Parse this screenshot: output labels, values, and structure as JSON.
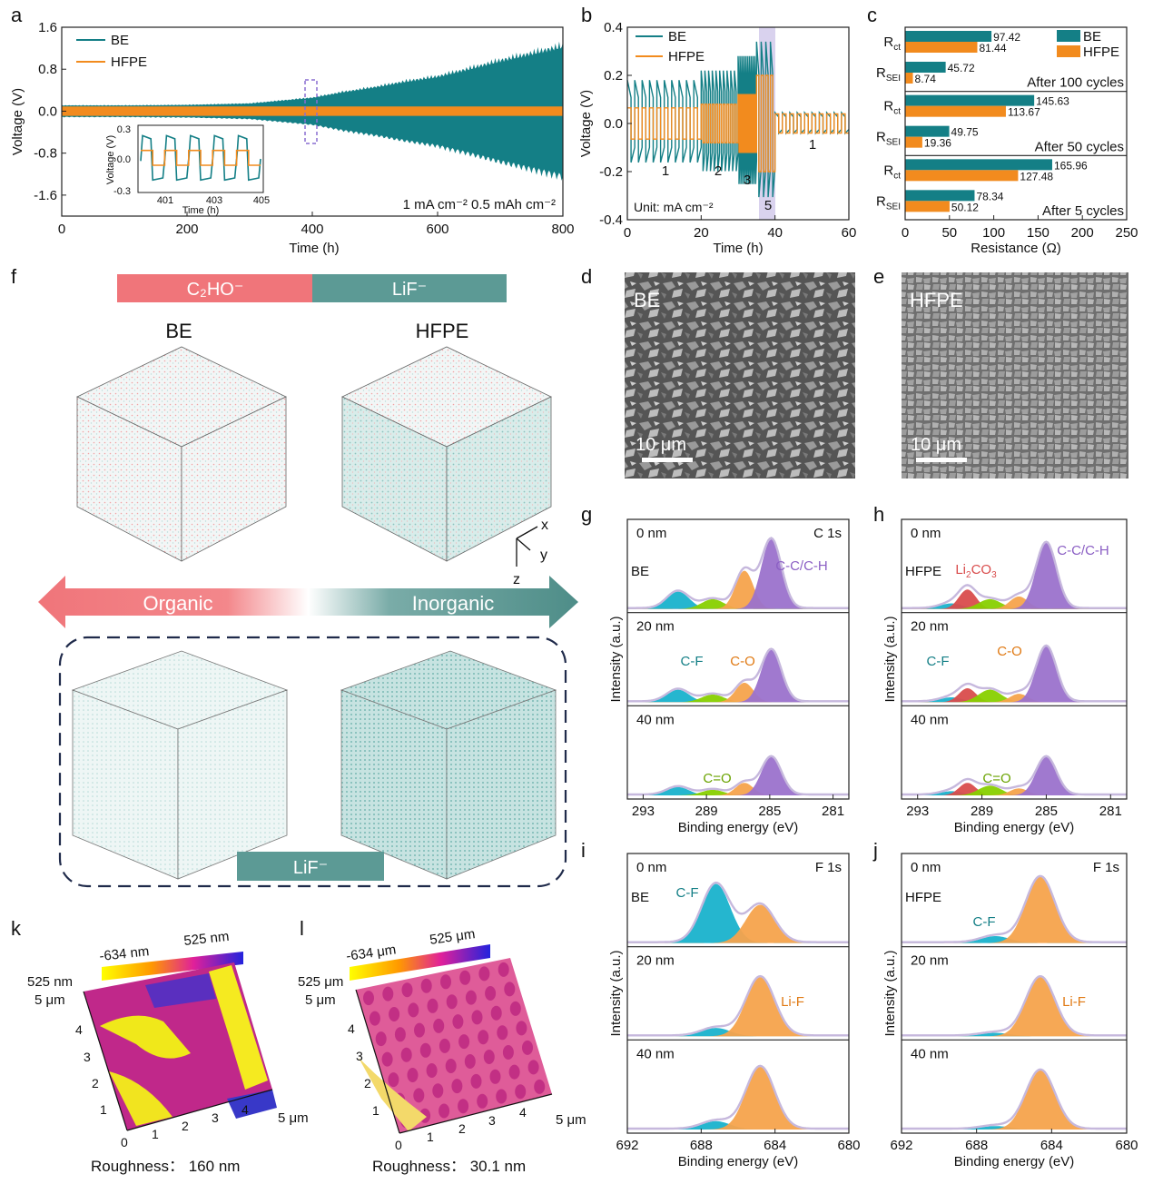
{
  "colors": {
    "be": "#147f86",
    "hfpe": "#f28b1e",
    "sei": "#88d000",
    "cf": "#19b2cc",
    "co": "#f6a34c",
    "cc": "#9b72cc",
    "li2co3": "#d94c4c",
    "env": "#c6b8dd",
    "organic": "#f0757a",
    "inorganic": "#4e8d88",
    "lif_tag": "#5c9a95"
  },
  "panels": {
    "a": "a",
    "b": "b",
    "c": "c",
    "d": "d",
    "e": "e",
    "f": "f",
    "g": "g",
    "h": "h",
    "i": "i",
    "j": "j",
    "k": "k",
    "l": "l"
  },
  "chart_data": [
    {
      "id": "a",
      "type": "line",
      "title": "",
      "xlabel": "Time (h)",
      "ylabel": "Voltage (V)",
      "xlim": [
        0,
        800
      ],
      "ylim": [
        -2.0,
        1.6
      ],
      "xticks": [
        "0",
        "200",
        "400",
        "600",
        "800"
      ],
      "yticks": [
        "1.6",
        "0.8",
        "0.0",
        "-0.8",
        "-1.6"
      ],
      "series": [
        {
          "name": "BE",
          "envelope_x": [
            0,
            100,
            200,
            300,
            350,
            400,
            450,
            500,
            550,
            600,
            650,
            700,
            750,
            800
          ],
          "envelope_y": [
            0.12,
            0.12,
            0.13,
            0.16,
            0.22,
            0.28,
            0.4,
            0.5,
            0.62,
            0.72,
            0.88,
            1.05,
            1.2,
            1.35
          ]
        },
        {
          "name": "HFPE",
          "envelope_y": 0.09
        }
      ],
      "annotation": "1 mA cm⁻²   0.5 mAh cm⁻²",
      "inset": {
        "xlabel": "Time (h)",
        "ylabel": "Voltage (V)",
        "xticks": [
          "401",
          "403",
          "405"
        ],
        "yticks": [
          "0.3",
          "0.0",
          "-0.3"
        ]
      }
    },
    {
      "id": "b",
      "type": "line",
      "xlabel": "Time (h)",
      "ylabel": "Voltage (V)",
      "xlim": [
        0,
        60
      ],
      "ylim": [
        -0.4,
        0.4
      ],
      "xticks": [
        "0",
        "20",
        "40",
        "60"
      ],
      "yticks": [
        "0.4",
        "0.2",
        "0.0",
        "-0.2",
        "-0.4"
      ],
      "series": [
        {
          "name": "BE"
        },
        {
          "name": "HFPE"
        }
      ],
      "current_steps": [
        {
          "label": "1",
          "from": 0,
          "to": 20
        },
        {
          "label": "2",
          "from": 20,
          "to": 30
        },
        {
          "label": "3",
          "from": 30,
          "to": 35
        },
        {
          "label": "5",
          "from": 35,
          "to": 40
        },
        {
          "label": "1",
          "from": 40,
          "to": 60
        }
      ],
      "annotation": "Unit: mA cm⁻²"
    },
    {
      "id": "c",
      "type": "bar",
      "xlabel": "Resistance (Ω)",
      "xlim": [
        0,
        250
      ],
      "xticks": [
        "0",
        "50",
        "100",
        "150",
        "200",
        "250"
      ],
      "legend": [
        "BE",
        "HFPE"
      ],
      "groups": [
        {
          "condition": "After 100 cycles",
          "rct": {
            "BE": 97.42,
            "HFPE": 81.44
          },
          "rsei": {
            "BE": 45.72,
            "HFPE": 8.74
          },
          "rct_labels": [
            "97.42",
            "81.44"
          ],
          "rsei_labels": [
            "45.72",
            "8.74"
          ]
        },
        {
          "condition": "After 50 cycles",
          "rct": {
            "BE": 145.63,
            "HFPE": 113.67
          },
          "rsei": {
            "BE": 49.75,
            "HFPE": 19.36
          },
          "rct_labels": [
            "145.63",
            "113.67"
          ],
          "rsei_labels": [
            "49.75",
            "19.36"
          ]
        },
        {
          "condition": "After 5 cycles",
          "rct": {
            "BE": 165.96,
            "HFPE": 127.48
          },
          "rsei": {
            "BE": 78.34,
            "HFPE": 50.12
          },
          "rct_labels": [
            "165.96",
            "127.48"
          ],
          "rsei_labels": [
            "78.34",
            "50.12"
          ]
        }
      ]
    },
    {
      "id": "g",
      "type": "area",
      "title": "C 1s",
      "sample": "BE",
      "xlabel": "Binding energy (eV)",
      "ylabel": "Intensity (a.u.)",
      "xlim": [
        294,
        280
      ],
      "xticks": [
        "293",
        "289",
        "285",
        "281"
      ],
      "depths": [
        "0 nm",
        "20 nm",
        "40 nm"
      ],
      "peak_labels": [
        "C-C/C-H",
        "C-F",
        "C-O",
        "C=O"
      ],
      "peaks": [
        {
          "name": "C-F",
          "center": 290.8,
          "amp": [
            0.25,
            0.18,
            0.12
          ]
        },
        {
          "name": "C=O",
          "center": 288.6,
          "amp": [
            0.14,
            0.11,
            0.08
          ]
        },
        {
          "name": "C-O",
          "center": 286.6,
          "amp": [
            0.55,
            0.28,
            0.18
          ]
        },
        {
          "name": "C-C/C-H",
          "center": 284.9,
          "amp": [
            1.0,
            0.75,
            0.55
          ]
        }
      ]
    },
    {
      "id": "h",
      "type": "area",
      "sample": "HFPE",
      "xlabel": "Binding energy (eV)",
      "ylabel": "Intensity (a.u.)",
      "xlim": [
        294,
        280
      ],
      "xticks": [
        "293",
        "289",
        "285",
        "281"
      ],
      "depths": [
        "0 nm",
        "20 nm",
        "40 nm"
      ],
      "peak_labels": [
        "C-C/C-H",
        "Li₂CO₃",
        "C-F",
        "C-O",
        "C=O"
      ],
      "peaks": [
        {
          "name": "C-F",
          "center": 290.9,
          "amp": [
            0.08,
            0.07,
            0.06
          ]
        },
        {
          "name": "Li2CO3",
          "center": 289.9,
          "amp": [
            0.28,
            0.2,
            0.18
          ]
        },
        {
          "name": "C=O",
          "center": 288.5,
          "amp": [
            0.14,
            0.18,
            0.14
          ]
        },
        {
          "name": "C-O",
          "center": 286.7,
          "amp": [
            0.18,
            0.12,
            0.1
          ]
        },
        {
          "name": "C-C/C-H",
          "center": 285.0,
          "amp": [
            0.95,
            0.8,
            0.55
          ]
        }
      ]
    },
    {
      "id": "i",
      "type": "area",
      "title": "F 1s",
      "sample": "BE",
      "xlabel": "Binding energy (eV)",
      "ylabel": "Intensity (a.u.)",
      "xlim": [
        692,
        680
      ],
      "xticks": [
        "692",
        "688",
        "684",
        "680"
      ],
      "depths": [
        "0 nm",
        "20 nm",
        "40 nm"
      ],
      "peak_labels": [
        "C-F",
        "Li-F"
      ],
      "peaks": [
        {
          "name": "C-F",
          "center": 687.2,
          "amp": [
            0.85,
            0.12,
            0.12
          ]
        },
        {
          "name": "Li-F",
          "center": 684.8,
          "amp": [
            0.55,
            0.85,
            0.9
          ]
        }
      ]
    },
    {
      "id": "j",
      "type": "area",
      "title": "F 1s",
      "sample": "HFPE",
      "xlabel": "Binding energy (eV)",
      "ylabel": "Intensity (a.u.)",
      "xlim": [
        692,
        680
      ],
      "xticks": [
        "692",
        "688",
        "684",
        "680"
      ],
      "depths": [
        "0 nm",
        "20 nm",
        "40 nm"
      ],
      "peak_labels": [
        "C-F",
        "Li-F"
      ],
      "peaks": [
        {
          "name": "C-F",
          "center": 687.0,
          "amp": [
            0.1,
            0.05,
            0.05
          ]
        },
        {
          "name": "Li-F",
          "center": 684.6,
          "amp": [
            0.95,
            0.85,
            0.85
          ]
        }
      ]
    }
  ],
  "sem": {
    "d": {
      "label": "BE",
      "scale": "10 μm"
    },
    "e": {
      "label": "HFPE",
      "scale": "10 μm"
    }
  },
  "tof": {
    "bar_left": "C₂HO⁻",
    "bar_right": "LiF⁻",
    "be": "BE",
    "hfpe": "HFPE",
    "axes": [
      "x",
      "y",
      "z"
    ],
    "arrow_left": "Organic",
    "arrow_right": "Inorganic",
    "bottom_tag": "LiF⁻"
  },
  "afm": {
    "k": {
      "min": "-634 nm",
      "max": "525 nm",
      "z": "525 nm",
      "roughness": "Roughness： 160 nm",
      "xt": [
        "0",
        "1",
        "2",
        "3",
        "4",
        "5 μm"
      ],
      "yt": [
        "1",
        "2",
        "3",
        "4",
        "5 μm"
      ]
    },
    "l": {
      "min": "-634 μm",
      "max": "525 μm",
      "z": "525 μm",
      "roughness": "Roughness： 30.1 nm",
      "xt": [
        "0",
        "1",
        "2",
        "3",
        "4",
        "5 μm"
      ],
      "yt": [
        "1",
        "2",
        "3",
        "4",
        "5 μm"
      ]
    }
  }
}
